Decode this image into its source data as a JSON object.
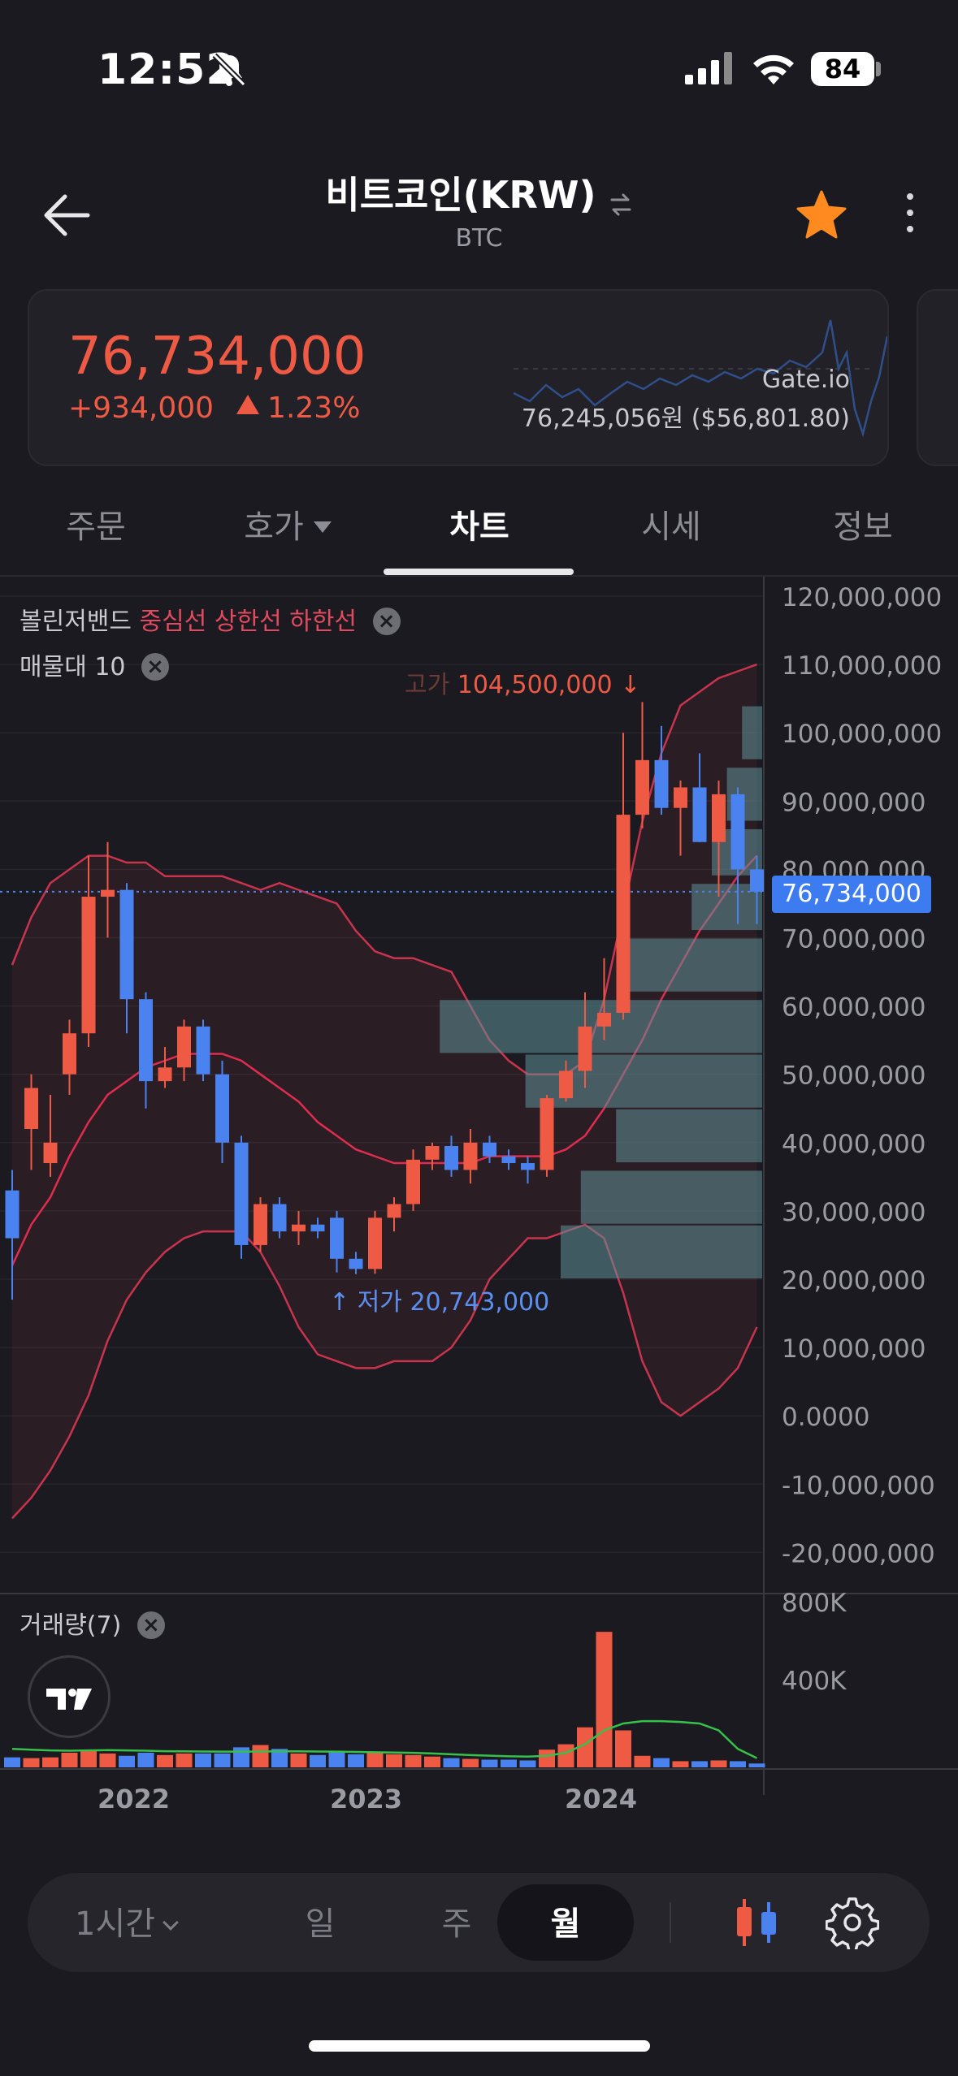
{
  "status_bar": {
    "time": "12:52",
    "battery": "84",
    "icons": [
      "bell-slash-icon",
      "signal-icon",
      "wifi-icon",
      "battery-icon"
    ]
  },
  "header": {
    "title": "비트코인(KRW)",
    "subtitle": "BTC",
    "icons": [
      "back-arrow-icon",
      "swap-icon",
      "star-icon",
      "more-vertical-icon"
    ],
    "star_color": "#ff8a1f"
  },
  "price_card": {
    "price": "76,734,000",
    "change_amount": "+934,000",
    "change_percent": "1.23%",
    "exchange": "Gate.io",
    "exchange_price": "76,245,056원 ($56,801.80)",
    "up_color": "#ef5a44"
  },
  "tabs": {
    "items": [
      {
        "label": "주문"
      },
      {
        "label": "호가"
      },
      {
        "label": "차트"
      },
      {
        "label": "시세"
      },
      {
        "label": "정보"
      }
    ],
    "active": "차트"
  },
  "chart": {
    "legend_bb_label": "볼린저밴드",
    "legend_bb_lines": "중심선 상한선 하한선",
    "legend_vp": "매물대 10",
    "high_prefix": "고가",
    "high_value": "104,500,000",
    "low_prefix": "저가",
    "low_value": "20,743,000",
    "last_price_tag": "76,734,000",
    "volume_legend": "거래량(7)",
    "x_labels": [
      "2022",
      "2023",
      "2024"
    ],
    "y_labels": [
      "120,000,000",
      "110,000,000",
      "100,000,000",
      "90,000,000",
      "80,000,000",
      "70,000,000",
      "60,000,000",
      "50,000,000",
      "40,000,000",
      "30,000,000",
      "20,000,000",
      "10,000,000",
      "0.0000",
      "-10,000,000",
      "-20,000,000"
    ],
    "vol_y_labels": [
      "800K",
      "400K"
    ]
  },
  "chart_data": {
    "type": "candlestick",
    "title": "",
    "xlabel": "",
    "ylabel": "",
    "interval": "월",
    "ylim": [
      -20000000,
      120000000
    ],
    "x_ticks": [
      "2022",
      "2023",
      "2024"
    ],
    "candles": [
      {
        "o": 33,
        "h": 36,
        "l": 17,
        "c": 26,
        "v": 65
      },
      {
        "o": 42,
        "h": 50,
        "l": 36,
        "c": 48,
        "v": 60
      },
      {
        "o": 37,
        "h": 47,
        "l": 35,
        "c": 40,
        "v": 65
      },
      {
        "o": 50,
        "h": 58,
        "l": 47,
        "c": 56,
        "v": 95
      },
      {
        "o": 56,
        "h": 82,
        "l": 54,
        "c": 76,
        "v": 115
      },
      {
        "o": 76,
        "h": 84,
        "l": 70,
        "c": 77,
        "v": 90
      },
      {
        "o": 77,
        "h": 78,
        "l": 56,
        "c": 61,
        "v": 75
      },
      {
        "o": 61,
        "h": 62,
        "l": 45,
        "c": 49,
        "v": 95
      },
      {
        "o": 49,
        "h": 54,
        "l": 48,
        "c": 51,
        "v": 80
      },
      {
        "o": 51,
        "h": 58,
        "l": 49,
        "c": 57,
        "v": 90
      },
      {
        "o": 57,
        "h": 58,
        "l": 49,
        "c": 50,
        "v": 90
      },
      {
        "o": 50,
        "h": 52,
        "l": 37,
        "c": 40,
        "v": 90
      },
      {
        "o": 40,
        "h": 41,
        "l": 23,
        "c": 25,
        "v": 130
      },
      {
        "o": 25,
        "h": 32,
        "l": 24,
        "c": 31,
        "v": 145
      },
      {
        "o": 31,
        "h": 32,
        "l": 26,
        "c": 27,
        "v": 120
      },
      {
        "o": 27,
        "h": 30,
        "l": 25,
        "c": 28,
        "v": 90
      },
      {
        "o": 28,
        "h": 29,
        "l": 26,
        "c": 27,
        "v": 80
      },
      {
        "o": 29,
        "h": 30,
        "l": 21,
        "c": 23,
        "v": 105
      },
      {
        "o": 23,
        "h": 24,
        "l": 20.743,
        "c": 21.5,
        "v": 85
      },
      {
        "o": 21.5,
        "h": 30,
        "l": 20.8,
        "c": 29,
        "v": 95
      },
      {
        "o": 29,
        "h": 32,
        "l": 27,
        "c": 31,
        "v": 85
      },
      {
        "o": 31,
        "h": 39,
        "l": 30,
        "c": 37.5,
        "v": 80
      },
      {
        "o": 37.5,
        "h": 40,
        "l": 36,
        "c": 39.5,
        "v": 70
      },
      {
        "o": 39.5,
        "h": 41,
        "l": 35,
        "c": 36,
        "v": 60
      },
      {
        "o": 36,
        "h": 42,
        "l": 34,
        "c": 40,
        "v": 55
      },
      {
        "o": 40,
        "h": 41,
        "l": 37,
        "c": 38,
        "v": 50
      },
      {
        "o": 38,
        "h": 39,
        "l": 36,
        "c": 37,
        "v": 50
      },
      {
        "o": 37,
        "h": 38,
        "l": 34,
        "c": 36,
        "v": 45
      },
      {
        "o": 36,
        "h": 47,
        "l": 35,
        "c": 46.5,
        "v": 115
      },
      {
        "o": 46.5,
        "h": 52,
        "l": 46,
        "c": 50.5,
        "v": 150
      },
      {
        "o": 50.5,
        "h": 62,
        "l": 48,
        "c": 57,
        "v": 260
      },
      {
        "o": 57,
        "h": 67,
        "l": 55,
        "c": 59,
        "v": 880
      },
      {
        "o": 59,
        "h": 100,
        "l": 58,
        "c": 88,
        "v": 240
      },
      {
        "o": 88,
        "h": 104.5,
        "l": 86,
        "c": 96,
        "v": 75
      },
      {
        "o": 96,
        "h": 101,
        "l": 88,
        "c": 89,
        "v": 60
      },
      {
        "o": 89,
        "h": 93,
        "l": 82,
        "c": 92,
        "v": 40
      },
      {
        "o": 92,
        "h": 97,
        "l": 84,
        "c": 84,
        "v": 40
      },
      {
        "o": 84,
        "h": 93,
        "l": 76,
        "c": 91,
        "v": 45
      },
      {
        "o": 91,
        "h": 92,
        "l": 72,
        "c": 80,
        "v": 40
      },
      {
        "o": 80,
        "h": 82,
        "l": 72,
        "c": 76.734,
        "v": 25
      }
    ],
    "volume_profile": [
      {
        "from": 20,
        "to": 28,
        "size": 0.4
      },
      {
        "from": 28,
        "to": 36,
        "size": 0.36
      },
      {
        "from": 37,
        "to": 45,
        "size": 0.29
      },
      {
        "from": 45,
        "to": 53,
        "size": 0.47
      },
      {
        "from": 53,
        "to": 61,
        "size": 0.64
      },
      {
        "from": 62,
        "to": 70,
        "size": 0.27
      },
      {
        "from": 71,
        "to": 78,
        "size": 0.14
      },
      {
        "from": 79,
        "to": 86,
        "size": 0.1
      },
      {
        "from": 87,
        "to": 95,
        "size": 0.07
      },
      {
        "from": 96,
        "to": 104,
        "size": 0.04
      }
    ],
    "bb_mid": [
      22,
      28,
      32,
      38,
      43,
      47,
      49,
      51,
      52,
      53,
      53,
      53,
      52,
      50,
      48,
      46,
      43,
      41,
      39,
      38,
      37,
      37,
      37,
      37,
      37,
      38,
      38,
      38,
      38,
      39,
      41,
      45,
      50,
      55,
      61,
      66,
      71,
      75,
      79,
      82
    ],
    "bb_upper": [
      66,
      73,
      78,
      80,
      82,
      82,
      81,
      81,
      79,
      79,
      79,
      79,
      78,
      77,
      78,
      77,
      76,
      75,
      71,
      68,
      67,
      67,
      66,
      65,
      60,
      55,
      52,
      50,
      50,
      50,
      52,
      61,
      74,
      87,
      97,
      104,
      106,
      108,
      109,
      110
    ],
    "bb_lower": [
      -15,
      -12,
      -8,
      -3,
      3,
      11,
      17,
      21,
      24,
      26,
      27,
      27,
      27,
      24,
      19,
      13,
      9,
      8,
      7,
      7,
      8,
      8,
      8,
      10,
      14,
      20,
      23,
      26,
      26,
      27,
      28,
      26,
      18,
      8,
      2,
      0,
      2,
      4,
      7,
      13
    ],
    "volume_ma": [
      120,
      115,
      110,
      108,
      110,
      112,
      110,
      108,
      105,
      104,
      103,
      102,
      102,
      103,
      104,
      104,
      103,
      102,
      100,
      98,
      96,
      94,
      90,
      85,
      80,
      76,
      72,
      70,
      75,
      95,
      150,
      240,
      285,
      300,
      300,
      295,
      285,
      240,
      120,
      60
    ],
    "last_price": 76.734,
    "units": "million KRW",
    "up_color": "#ef5a44",
    "down_color": "#4a83f0"
  },
  "toolbar": {
    "interval": "1시간",
    "day": "일",
    "week": "주",
    "month": "월",
    "icons": [
      "candlestick-icon",
      "settings-gear-icon"
    ]
  }
}
